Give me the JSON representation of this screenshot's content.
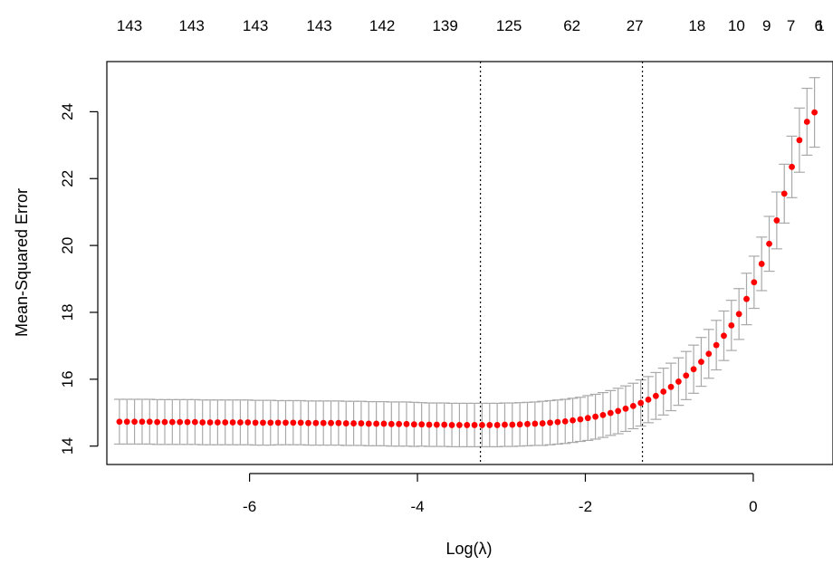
{
  "chart_data": {
    "type": "scatter",
    "xlabel": "Log(λ)",
    "ylabel": "Mean-Squared Error",
    "xlim": [
      -7.7,
      0.95
    ],
    "ylim": [
      13.45,
      25.5
    ],
    "x_ticks": [
      -6,
      -4,
      -2,
      0
    ],
    "x_tick_labels": [
      "-6",
      "-4",
      "-2",
      "0"
    ],
    "y_ticks": [
      14,
      16,
      18,
      20,
      22,
      24
    ],
    "y_tick_labels": [
      "14",
      "16",
      "18",
      "20",
      "22",
      "24"
    ],
    "top_axis": {
      "positions": [
        -7.43,
        -6.69,
        -5.93,
        -5.17,
        -4.42,
        -3.67,
        -2.91,
        -2.16,
        -1.41,
        -0.67,
        -0.2,
        0.16,
        0.45,
        0.78,
        1.1
      ],
      "labels": [
        "143",
        "143",
        "143",
        "143",
        "142",
        "139",
        "125",
        "62",
        "27",
        "18",
        "10",
        "9",
        "7",
        "6",
        "1"
      ]
    },
    "vlines": [
      -3.25,
      -1.32
    ],
    "grid": false,
    "legend": "none",
    "colors": {
      "points": "#ff0000",
      "error_bars": "#a9a9a9",
      "vlines": "#000000"
    },
    "x": [
      -7.55,
      -7.46,
      -7.37,
      -7.28,
      -7.19,
      -7.1,
      -7.01,
      -6.92,
      -6.83,
      -6.74,
      -6.65,
      -6.56,
      -6.47,
      -6.38,
      -6.29,
      -6.2,
      -6.11,
      -6.02,
      -5.93,
      -5.84,
      -5.75,
      -5.66,
      -5.57,
      -5.48,
      -5.39,
      -5.3,
      -5.21,
      -5.12,
      -5.03,
      -4.94,
      -4.85,
      -4.76,
      -4.67,
      -4.58,
      -4.49,
      -4.4,
      -4.31,
      -4.22,
      -4.13,
      -4.04,
      -3.95,
      -3.86,
      -3.77,
      -3.68,
      -3.59,
      -3.5,
      -3.41,
      -3.32,
      -3.23,
      -3.14,
      -3.05,
      -2.96,
      -2.87,
      -2.78,
      -2.69,
      -2.6,
      -2.51,
      -2.42,
      -2.33,
      -2.24,
      -2.15,
      -2.06,
      -1.97,
      -1.88,
      -1.79,
      -1.7,
      -1.61,
      -1.52,
      -1.43,
      -1.34,
      -1.25,
      -1.16,
      -1.07,
      -0.98,
      -0.89,
      -0.8,
      -0.71,
      -0.62,
      -0.53,
      -0.44,
      -0.35,
      -0.26,
      -0.17,
      -0.08,
      0.01,
      0.1,
      0.19,
      0.28,
      0.37,
      0.46,
      0.55,
      0.64,
      0.73
    ],
    "mse": [
      14.73,
      14.73,
      14.73,
      14.73,
      14.73,
      14.72,
      14.72,
      14.72,
      14.72,
      14.72,
      14.72,
      14.71,
      14.71,
      14.71,
      14.71,
      14.71,
      14.71,
      14.71,
      14.7,
      14.7,
      14.7,
      14.7,
      14.7,
      14.7,
      14.7,
      14.69,
      14.69,
      14.69,
      14.69,
      14.69,
      14.68,
      14.68,
      14.68,
      14.67,
      14.67,
      14.67,
      14.66,
      14.66,
      14.66,
      14.65,
      14.65,
      14.64,
      14.64,
      14.64,
      14.63,
      14.63,
      14.63,
      14.63,
      14.63,
      14.63,
      14.63,
      14.64,
      14.64,
      14.65,
      14.66,
      14.67,
      14.68,
      14.7,
      14.72,
      14.74,
      14.77,
      14.8,
      14.84,
      14.88,
      14.93,
      14.99,
      15.05,
      15.12,
      15.2,
      15.29,
      15.39,
      15.5,
      15.63,
      15.77,
      15.93,
      16.11,
      16.3,
      16.52,
      16.76,
      17.02,
      17.3,
      17.61,
      17.95,
      18.4,
      18.9,
      19.45,
      20.05,
      20.75,
      21.55,
      22.35,
      23.15,
      23.7,
      23.98
    ],
    "se": [
      0.67,
      0.67,
      0.67,
      0.67,
      0.67,
      0.67,
      0.67,
      0.67,
      0.67,
      0.67,
      0.67,
      0.67,
      0.67,
      0.67,
      0.67,
      0.67,
      0.67,
      0.67,
      0.67,
      0.67,
      0.67,
      0.66,
      0.66,
      0.66,
      0.66,
      0.66,
      0.66,
      0.66,
      0.66,
      0.66,
      0.66,
      0.66,
      0.66,
      0.66,
      0.66,
      0.66,
      0.66,
      0.66,
      0.66,
      0.66,
      0.65,
      0.65,
      0.65,
      0.65,
      0.65,
      0.65,
      0.65,
      0.65,
      0.65,
      0.65,
      0.65,
      0.65,
      0.65,
      0.65,
      0.65,
      0.65,
      0.66,
      0.66,
      0.66,
      0.66,
      0.66,
      0.66,
      0.67,
      0.67,
      0.67,
      0.67,
      0.68,
      0.68,
      0.68,
      0.69,
      0.69,
      0.7,
      0.7,
      0.71,
      0.71,
      0.72,
      0.72,
      0.73,
      0.73,
      0.74,
      0.74,
      0.75,
      0.76,
      0.77,
      0.78,
      0.8,
      0.82,
      0.85,
      0.88,
      0.92,
      0.96,
      1.0,
      1.04
    ]
  }
}
